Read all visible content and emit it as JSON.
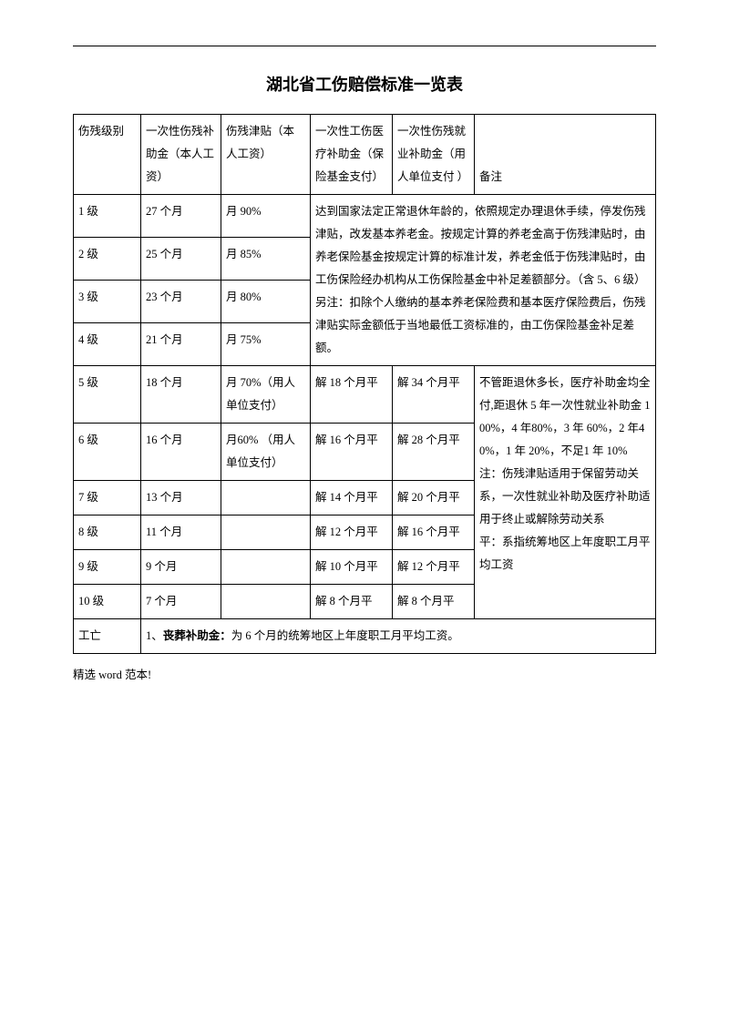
{
  "title": "湖北省工伤赔偿标准一览表",
  "header": {
    "col0": "伤残级别",
    "col1": "一次性伤残补助金（本人工资）",
    "col2": "伤残津贴（本人工资）",
    "col3": "一次性工伤医疗补助金（保险基金支付）",
    "col4": "一次性伤残就业补助金（用人单位支付 ）",
    "col5": "备注"
  },
  "top_rows": [
    {
      "level": "1 级",
      "subsidy": "27 个月",
      "allowance": "月 90%"
    },
    {
      "level": "2 级",
      "subsidy": "25 个月",
      "allowance": "月 85%"
    },
    {
      "level": "3 级",
      "subsidy": "23 个月",
      "allowance": "月 80%"
    },
    {
      "level": "4 级",
      "subsidy": "21 个月",
      "allowance": "月 75%"
    }
  ],
  "top_merged_note": "达到国家法定正常退休年龄的，依照规定办理退休手续，停发伤残津贴，改发基本养老金。按规定计算的养老金高于伤残津贴时，由养老保险基金按规定计算的标准计发，养老金低于伤残津贴时，由工伤保险经办机构从工伤保险基金中补足差额部分。（含 5、6 级）\n另注：扣除个人缴纳的基本养老保险费和基本医疗保险费后，伤残津贴实际金额低于当地最低工资标准的，由工伤保险基金补足差额。",
  "bottom_rows": [
    {
      "level": "5 级",
      "subsidy": "18 个月",
      "allowance": "月 70%（用人单位支付）",
      "medical": "解 18 个月平",
      "employment": "解 34 个月平"
    },
    {
      "level": "6 级",
      "subsidy": "16 个月",
      "allowance": "月60%  （用人单位支付）",
      "medical": "解 16 个月平",
      "employment": "解 28 个月平"
    },
    {
      "level": "7 级",
      "subsidy": "13 个月",
      "allowance": "",
      "medical": "解 14 个月平",
      "employment": "解 20 个月平"
    },
    {
      "level": "8 级",
      "subsidy": "11 个月",
      "allowance": "",
      "medical": "解 12 个月平",
      "employment": "解 16 个月平"
    },
    {
      "level": "9 级",
      "subsidy": "9 个月",
      "allowance": "",
      "medical": "解 10 个月平",
      "employment": "解 12 个月平"
    },
    {
      "level": "10 级",
      "subsidy": "7 个月",
      "allowance": "",
      "medical": "解 8 个月平",
      "employment": "解 8 个月平"
    }
  ],
  "bottom_merged_note": "不管距退休多长，医疗补助金均全付,距退休 5 年一次性就业补助金 100%，4 年80%，3 年 60%，2 年40%，1 年 20%，不足1 年 10%\n注：伤残津贴适用于保留劳动关系，一次性就业补助及医疗补助适用于终止或解除劳动关系\n平：系指统筹地区上年度职工月平均工资",
  "death_row": {
    "label": "工亡",
    "prefix": "1、",
    "bold": "丧葬补助金：",
    "rest": "为 6 个月的统筹地区上年度职工月平均工资。"
  },
  "footer": "精选 word 范本!"
}
